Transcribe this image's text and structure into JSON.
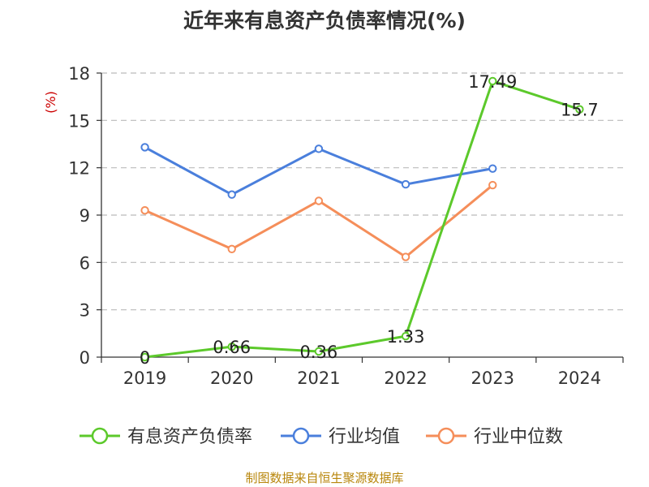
{
  "chart_data": {
    "type": "line",
    "title": "近年来有息资产负债率情况(%)",
    "ylabel": "(%)",
    "categories": [
      "2019",
      "2020",
      "2021",
      "2022",
      "2023",
      "2024"
    ],
    "ylim": [
      0,
      18
    ],
    "yticks": [
      0,
      3,
      6,
      9,
      12,
      15,
      18
    ],
    "grid": true,
    "legend_position": "bottom",
    "series": [
      {
        "name": "有息资产负债率",
        "color": "#5cc92b",
        "values": [
          0,
          0.66,
          0.36,
          1.33,
          17.49,
          15.7
        ],
        "labels": [
          "0",
          "0.66",
          "0.36",
          "1.33",
          "17.49",
          "15.7"
        ]
      },
      {
        "name": "行业均值",
        "color": "#4a7fdc",
        "values": [
          13.3,
          10.3,
          13.2,
          10.95,
          11.95,
          null
        ]
      },
      {
        "name": "行业中位数",
        "color": "#f58e5a",
        "values": [
          9.3,
          6.85,
          9.9,
          6.35,
          10.9,
          null
        ]
      }
    ]
  },
  "source": "制图数据来自恒生聚源数据库"
}
